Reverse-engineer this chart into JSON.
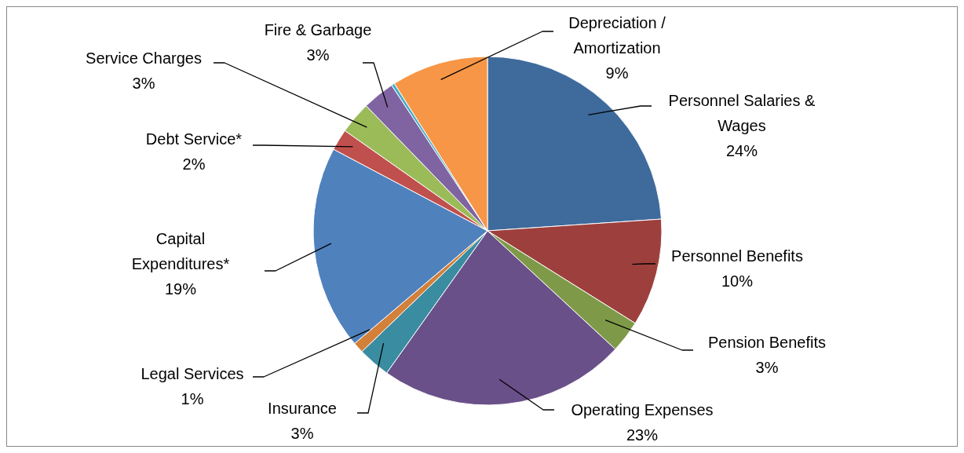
{
  "chart_data": {
    "type": "pie",
    "categories": [
      "Personnel Salaries & Wages",
      "Personnel Benefits",
      "Pension Benefits",
      "Operating Expenses",
      "Insurance",
      "Legal Services",
      "Capital Expenditures*",
      "Debt Service*",
      "Service Charges",
      "Fire & Garbage",
      null,
      "Depreciation / Amortization"
    ],
    "values": [
      24,
      10,
      3,
      23,
      3,
      1,
      19,
      2,
      3,
      3,
      0.3,
      9
    ],
    "value_labels": [
      "24%",
      "10%",
      "3%",
      "23%",
      "3%",
      "1%",
      "19%",
      "2%",
      "3%",
      "3%",
      null,
      "9%"
    ],
    "colors": [
      "#3f6a9c",
      "#9d403d",
      "#7e9a48",
      "#6a5089",
      "#3a8ca1",
      "#d2803a",
      "#4f81bd",
      "#c0504d",
      "#9bbb59",
      "#8064a2",
      "#4bacc6",
      "#f79646"
    ],
    "legend": false
  }
}
